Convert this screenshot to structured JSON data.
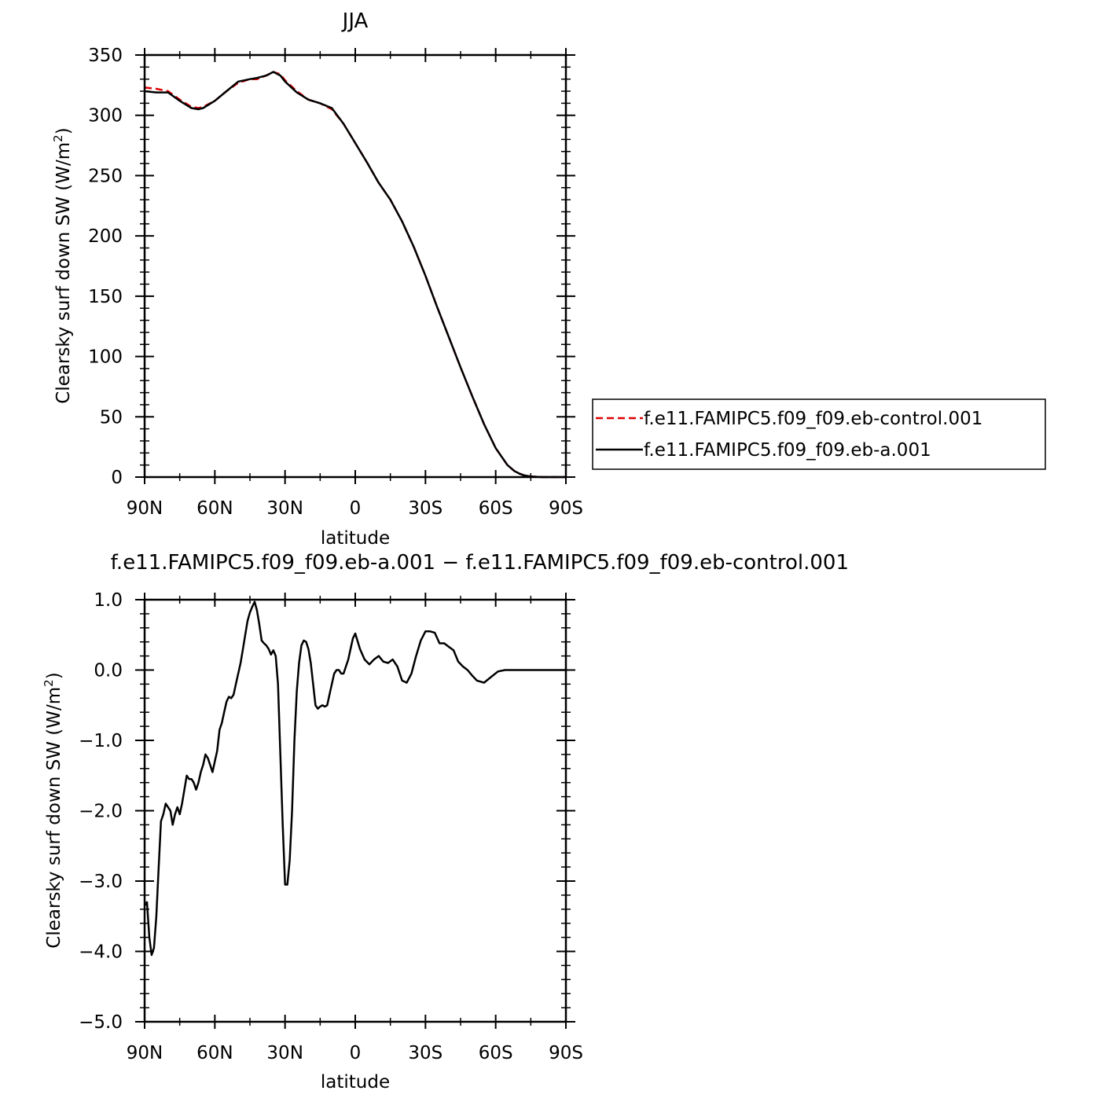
{
  "chart_data": [
    {
      "type": "line",
      "title": "JJA",
      "xlabel": "latitude",
      "ylabel": "Clearsky surf down SW (W/m",
      "ylabel_sup": "2",
      "ylabel_end": ")",
      "xlim": [
        90,
        -90
      ],
      "ylim": [
        0,
        350
      ],
      "xticks": [
        90,
        60,
        30,
        0,
        -30,
        -60,
        -90
      ],
      "xtick_labels": [
        "90N",
        "60N",
        "30N",
        "0",
        "30S",
        "60S",
        "90S"
      ],
      "yticks": [
        0,
        50,
        100,
        150,
        200,
        250,
        300,
        350
      ],
      "ytick_labels": [
        "0",
        "50",
        "100",
        "150",
        "200",
        "250",
        "300",
        "350"
      ],
      "legend_position": "right",
      "series": [
        {
          "name": "f.e11.FAMIPC5.f09_f09.eb-control.001",
          "color": "#e00000",
          "style": "dashed",
          "x": [
            90,
            85,
            80,
            75,
            70,
            67,
            65,
            60,
            55,
            50,
            45,
            42,
            38,
            35,
            32,
            30,
            25,
            20,
            15,
            10,
            5,
            0,
            -5,
            -10,
            -15,
            -20,
            -25,
            -30,
            -35,
            -40,
            -45,
            -50,
            -55,
            -60,
            -65,
            -68,
            -70,
            -72,
            -75,
            -78,
            -80,
            -85,
            -90
          ],
          "y": [
            323,
            322,
            320,
            313,
            307,
            306,
            307,
            312,
            320,
            327,
            330,
            330,
            333,
            336,
            334,
            329,
            320,
            313,
            310,
            305,
            293,
            277,
            261,
            244,
            230,
            212,
            191,
            167,
            141,
            116,
            91,
            67,
            44,
            24,
            10,
            5,
            3,
            1.5,
            0.5,
            0.1,
            0,
            0,
            0
          ]
        },
        {
          "name": "f.e11.FAMIPC5.f09_f09.eb-a.001",
          "color": "#000000",
          "style": "solid",
          "x": [
            90,
            85,
            80,
            75,
            70,
            67,
            65,
            60,
            55,
            50,
            45,
            42,
            38,
            35,
            32,
            30,
            25,
            20,
            15,
            10,
            5,
            0,
            -5,
            -10,
            -15,
            -20,
            -25,
            -30,
            -35,
            -40,
            -45,
            -50,
            -55,
            -60,
            -65,
            -68,
            -70,
            -72,
            -75,
            -78,
            -80,
            -85,
            -90
          ],
          "y": [
            320,
            319,
            319,
            312,
            306,
            305,
            306,
            312,
            320,
            328,
            330,
            331,
            333,
            336,
            333,
            328,
            319,
            313,
            310,
            306,
            293,
            277,
            261,
            244,
            230,
            212,
            191,
            167,
            141,
            116,
            91,
            67,
            44,
            24,
            10,
            5,
            3,
            1.5,
            0.5,
            0.1,
            0,
            0,
            0
          ]
        }
      ]
    },
    {
      "type": "line",
      "title": "f.e11.FAMIPC5.f09_f09.eb-a.001 − f.e11.FAMIPC5.f09_f09.eb-control.001",
      "xlabel": "latitude",
      "ylabel": "Clearsky surf down SW (W/m",
      "ylabel_sup": "2",
      "ylabel_end": ")",
      "xlim": [
        90,
        -90
      ],
      "ylim": [
        -5,
        1
      ],
      "xticks": [
        90,
        60,
        30,
        0,
        -30,
        -60,
        -90
      ],
      "xtick_labels": [
        "90N",
        "60N",
        "30N",
        "0",
        "30S",
        "60S",
        "90S"
      ],
      "yticks": [
        1,
        0,
        -1,
        -2,
        -3,
        -4,
        -5
      ],
      "ytick_labels": [
        "1.0",
        "0.0",
        "−1.0",
        "−2.0",
        "−3.0",
        "−4.0",
        "−5.0"
      ],
      "series": [
        {
          "color": "#000000",
          "style": "solid",
          "x": [
            90,
            89,
            88,
            87,
            86,
            85,
            84,
            83,
            82,
            81,
            80,
            79,
            78,
            77,
            76,
            75,
            74,
            73,
            72,
            71,
            70,
            69,
            68,
            67,
            66,
            65,
            64,
            63,
            62,
            61,
            60,
            59,
            58,
            57,
            56,
            55,
            54,
            53,
            52,
            51,
            50,
            49,
            48,
            47,
            46,
            45,
            44,
            43,
            42,
            41,
            40,
            39,
            38,
            37,
            36,
            35,
            34,
            33,
            32,
            31,
            30,
            29,
            28,
            27,
            26,
            25,
            24,
            23,
            22,
            21,
            20,
            19,
            18,
            17,
            16,
            15,
            14,
            13,
            12,
            11,
            10,
            9,
            8,
            7,
            6,
            5,
            4,
            3,
            2,
            1,
            0,
            -2,
            -4,
            -6,
            -8,
            -10,
            -12,
            -14,
            -16,
            -18,
            -20,
            -22,
            -24,
            -26,
            -28,
            -30,
            -32,
            -34,
            -36,
            -38,
            -40,
            -42,
            -44,
            -46,
            -48,
            -50,
            -52,
            -55,
            -58,
            -61,
            -64,
            -67,
            -70,
            -73,
            -76,
            -79,
            -82,
            -85,
            -88,
            -90
          ],
          "y": [
            -3.35,
            -3.3,
            -3.8,
            -4.05,
            -3.95,
            -3.5,
            -2.8,
            -2.15,
            -2.05,
            -1.9,
            -1.95,
            -2.0,
            -2.2,
            -2.05,
            -1.95,
            -2.05,
            -1.9,
            -1.7,
            -1.5,
            -1.55,
            -1.55,
            -1.6,
            -1.7,
            -1.6,
            -1.45,
            -1.35,
            -1.2,
            -1.25,
            -1.35,
            -1.45,
            -1.3,
            -1.15,
            -0.85,
            -0.75,
            -0.6,
            -0.45,
            -0.38,
            -0.4,
            -0.35,
            -0.2,
            -0.05,
            0.1,
            0.3,
            0.5,
            0.7,
            0.82,
            0.9,
            0.97,
            0.85,
            0.65,
            0.42,
            0.38,
            0.35,
            0.3,
            0.22,
            0.28,
            0.2,
            -0.2,
            -1.2,
            -2.2,
            -3.05,
            -3.05,
            -2.7,
            -2.0,
            -1.0,
            -0.3,
            0.1,
            0.35,
            0.42,
            0.4,
            0.3,
            0.1,
            -0.2,
            -0.5,
            -0.55,
            -0.52,
            -0.5,
            -0.52,
            -0.5,
            -0.35,
            -0.2,
            -0.05,
            0.0,
            0.0,
            -0.05,
            -0.05,
            0.05,
            0.15,
            0.3,
            0.45,
            0.52,
            0.3,
            0.15,
            0.08,
            0.15,
            0.2,
            0.12,
            0.1,
            0.15,
            0.05,
            -0.15,
            -0.18,
            -0.05,
            0.2,
            0.42,
            0.55,
            0.55,
            0.53,
            0.38,
            0.38,
            0.33,
            0.28,
            0.12,
            0.05,
            0.0,
            -0.08,
            -0.15,
            -0.18,
            -0.1,
            -0.02,
            0.0,
            0.0,
            0.0,
            0.0,
            0.0,
            0.0,
            0.0,
            0.0,
            0.0,
            0.0
          ]
        }
      ]
    }
  ]
}
